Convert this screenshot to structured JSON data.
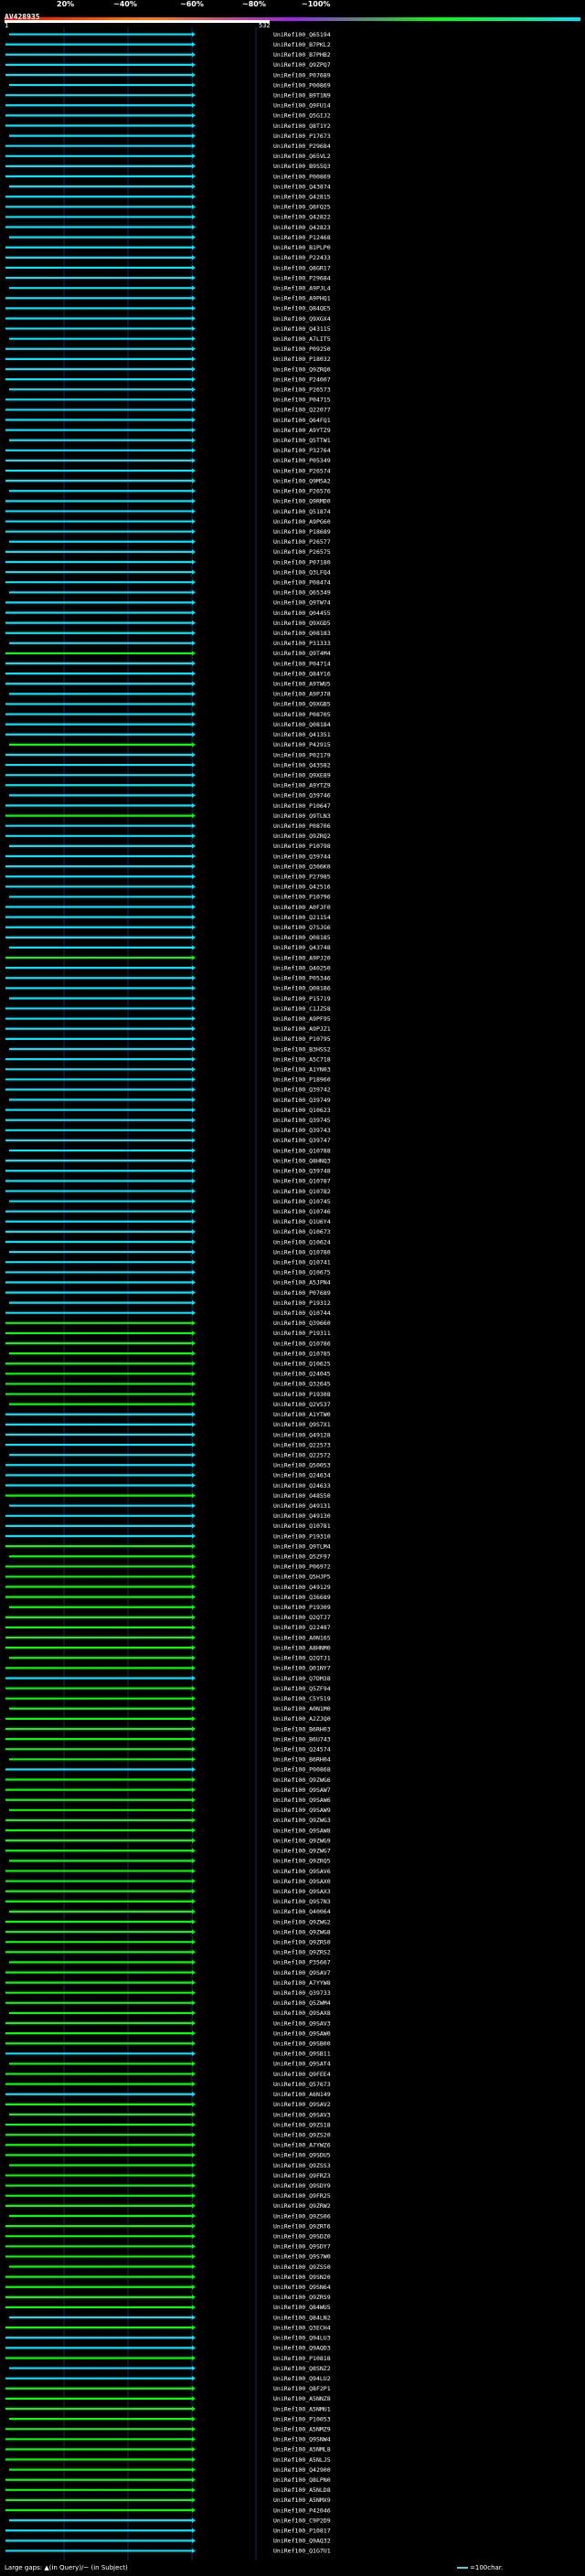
{
  "legend": {
    "labels": [
      "20%",
      "~40%",
      "~60%",
      "~80%",
      "~100%"
    ],
    "colors": [
      "#ff0000",
      "#ff8000",
      "#a020f0",
      "#00ff00",
      "#00e5ff"
    ]
  },
  "query": {
    "id": "AV428935",
    "start_label": "1",
    "end_label": "532"
  },
  "footer": {
    "text": "Large gaps: ▲(in Query)/~ (in Subject)",
    "scale_text": "=100char."
  },
  "hits": [
    {
      "id": "UniRef100_Q65194",
      "c": "b"
    },
    {
      "id": "UniRef100_B7PKL2",
      "c": "b"
    },
    {
      "id": "UniRef100_B7PHB2",
      "c": "b"
    },
    {
      "id": "UniRef100_Q9ZPQ7",
      "c": "b"
    },
    {
      "id": "UniRef100_P07689",
      "c": "b"
    },
    {
      "id": "UniRef100_P00869",
      "c": "b"
    },
    {
      "id": "UniRef100_B9T1N9",
      "c": "b"
    },
    {
      "id": "UniRef100_Q9FU14",
      "c": "b"
    },
    {
      "id": "UniRef100_Q5GIJ2",
      "c": "b"
    },
    {
      "id": "UniRef100_Q8T1Y2",
      "c": "b"
    },
    {
      "id": "UniRef100_P17673",
      "c": "b"
    },
    {
      "id": "UniRef100_P29684",
      "c": "b"
    },
    {
      "id": "UniRef100_Q65VL2",
      "c": "b"
    },
    {
      "id": "UniRef100_B9S5Q3",
      "c": "b"
    },
    {
      "id": "UniRef100_P00869",
      "c": "b"
    },
    {
      "id": "UniRef100_Q43874",
      "c": "b"
    },
    {
      "id": "UniRef100_Q42815",
      "c": "b"
    },
    {
      "id": "UniRef100_Q8FQ25",
      "c": "b"
    },
    {
      "id": "UniRef100_Q42822",
      "c": "b"
    },
    {
      "id": "UniRef100_Q42823",
      "c": "b"
    },
    {
      "id": "UniRef100_P12468",
      "c": "b"
    },
    {
      "id": "UniRef100_B1PLP0",
      "c": "b"
    },
    {
      "id": "UniRef100_P22433",
      "c": "b"
    },
    {
      "id": "UniRef100_Q8GR17",
      "c": "b"
    },
    {
      "id": "UniRef100_P29684",
      "c": "b"
    },
    {
      "id": "UniRef100_A9PJL4",
      "c": "b"
    },
    {
      "id": "UniRef100_A9PHQ1",
      "c": "b"
    },
    {
      "id": "UniRef100_Q84QE5",
      "c": "b"
    },
    {
      "id": "UniRef100_Q9XGX4",
      "c": "b"
    },
    {
      "id": "UniRef100_Q43115",
      "c": "b"
    },
    {
      "id": "UniRef100_A7LIT5",
      "c": "b"
    },
    {
      "id": "UniRef100_P09250",
      "c": "b"
    },
    {
      "id": "UniRef100_P18032",
      "c": "b"
    },
    {
      "id": "UniRef100_Q9ZRQ0",
      "c": "b"
    },
    {
      "id": "UniRef100_P24007",
      "c": "b"
    },
    {
      "id": "UniRef100_P26573",
      "c": "b"
    },
    {
      "id": "UniRef100_P04715",
      "c": "b"
    },
    {
      "id": "UniRef100_Q22077",
      "c": "b"
    },
    {
      "id": "UniRef100_Q64FQ1",
      "c": "b"
    },
    {
      "id": "UniRef100_A9YTZ9",
      "c": "b"
    },
    {
      "id": "UniRef100_Q5TTW1",
      "c": "b"
    },
    {
      "id": "UniRef100_P32764",
      "c": "b"
    },
    {
      "id": "UniRef100_P05349",
      "c": "b"
    },
    {
      "id": "UniRef100_P26574",
      "c": "b"
    },
    {
      "id": "UniRef100_Q9M5A2",
      "c": "b"
    },
    {
      "id": "UniRef100_P26576",
      "c": "b"
    },
    {
      "id": "UniRef100_Q9RMD0",
      "c": "b"
    },
    {
      "id": "UniRef100_Q51874",
      "c": "b"
    },
    {
      "id": "UniRef100_A9PG60",
      "c": "b"
    },
    {
      "id": "UniRef100_P18689",
      "c": "b"
    },
    {
      "id": "UniRef100_P26577",
      "c": "b"
    },
    {
      "id": "UniRef100_P26575",
      "c": "b"
    },
    {
      "id": "UniRef100_P07180",
      "c": "b"
    },
    {
      "id": "UniRef100_Q3LFQ4",
      "c": "b"
    },
    {
      "id": "UniRef100_P08474",
      "c": "b"
    },
    {
      "id": "UniRef100_Q65349",
      "c": "b"
    },
    {
      "id": "UniRef100_Q9TW74",
      "c": "b"
    },
    {
      "id": "UniRef100_Q04455",
      "c": "b"
    },
    {
      "id": "UniRef100_Q9XGD5",
      "c": "b"
    },
    {
      "id": "UniRef100_Q08183",
      "c": "b"
    },
    {
      "id": "UniRef100_P31333",
      "c": "b"
    },
    {
      "id": "UniRef100_Q9T4M4",
      "c": "g"
    },
    {
      "id": "UniRef100_P04714",
      "c": "b"
    },
    {
      "id": "UniRef100_Q84Y16",
      "c": "b"
    },
    {
      "id": "UniRef100_A9TWU5",
      "c": "b"
    },
    {
      "id": "UniRef100_A9PJ78",
      "c": "b"
    },
    {
      "id": "UniRef100_Q9XGB5",
      "c": "b"
    },
    {
      "id": "UniRef100_P08705",
      "c": "b"
    },
    {
      "id": "UniRef100_Q08184",
      "c": "b"
    },
    {
      "id": "UniRef100_Q41351",
      "c": "b"
    },
    {
      "id": "UniRef100_P42915",
      "c": "g"
    },
    {
      "id": "UniRef100_P02179",
      "c": "b"
    },
    {
      "id": "UniRef100_Q43582",
      "c": "b"
    },
    {
      "id": "UniRef100_Q9XE89",
      "c": "b"
    },
    {
      "id": "UniRef100_A9YTZ9",
      "c": "b"
    },
    {
      "id": "UniRef100_Q39746",
      "c": "b"
    },
    {
      "id": "UniRef100_P10647",
      "c": "b"
    },
    {
      "id": "UniRef100_Q9TLN3",
      "c": "g"
    },
    {
      "id": "UniRef100_P08706",
      "c": "b"
    },
    {
      "id": "UniRef100_Q9ZRQ2",
      "c": "b"
    },
    {
      "id": "UniRef100_P10798",
      "c": "b"
    },
    {
      "id": "UniRef100_Q39744",
      "c": "b"
    },
    {
      "id": "UniRef100_Q306K0",
      "c": "b"
    },
    {
      "id": "UniRef100_P27985",
      "c": "b"
    },
    {
      "id": "UniRef100_Q42516",
      "c": "b"
    },
    {
      "id": "UniRef100_P10796",
      "c": "b"
    },
    {
      "id": "UniRef100_A0FJF0",
      "c": "b"
    },
    {
      "id": "UniRef100_Q21154",
      "c": "b"
    },
    {
      "id": "UniRef100_Q7SJG6",
      "c": "b"
    },
    {
      "id": "UniRef100_Q08185",
      "c": "b"
    },
    {
      "id": "UniRef100_Q43748",
      "c": "b"
    },
    {
      "id": "UniRef100_A9PJ20",
      "c": "g"
    },
    {
      "id": "UniRef100_Q40250",
      "c": "b"
    },
    {
      "id": "UniRef100_P05346",
      "c": "b"
    },
    {
      "id": "UniRef100_Q08186",
      "c": "b"
    },
    {
      "id": "UniRef100_P15719",
      "c": "b"
    },
    {
      "id": "UniRef100_C1JZ58",
      "c": "b"
    },
    {
      "id": "UniRef100_A9PF95",
      "c": "b"
    },
    {
      "id": "UniRef100_A9PJZ1",
      "c": "b"
    },
    {
      "id": "UniRef100_P10795",
      "c": "b"
    },
    {
      "id": "UniRef100_B3HSS2",
      "c": "b"
    },
    {
      "id": "UniRef100_A5C718",
      "c": "b"
    },
    {
      "id": "UniRef100_A1YN03",
      "c": "b"
    },
    {
      "id": "UniRef100_P18960",
      "c": "b"
    },
    {
      "id": "UniRef100_Q39742",
      "c": "b"
    },
    {
      "id": "UniRef100_Q39749",
      "c": "b"
    },
    {
      "id": "UniRef100_Q10623",
      "c": "b"
    },
    {
      "id": "UniRef100_Q39745",
      "c": "b"
    },
    {
      "id": "UniRef100_Q39743",
      "c": "b"
    },
    {
      "id": "UniRef100_Q39747",
      "c": "b"
    },
    {
      "id": "UniRef100_Q10788",
      "c": "b"
    },
    {
      "id": "UniRef100_Q8HNQ3",
      "c": "b"
    },
    {
      "id": "UniRef100_Q39748",
      "c": "b"
    },
    {
      "id": "UniRef100_Q10787",
      "c": "b"
    },
    {
      "id": "UniRef100_Q10782",
      "c": "b"
    },
    {
      "id": "UniRef100_Q10745",
      "c": "b"
    },
    {
      "id": "UniRef100_Q10746",
      "c": "b"
    },
    {
      "id": "UniRef100_Q1U6Y4",
      "c": "b"
    },
    {
      "id": "UniRef100_Q10673",
      "c": "b"
    },
    {
      "id": "UniRef100_Q10624",
      "c": "b"
    },
    {
      "id": "UniRef100_Q10780",
      "c": "b"
    },
    {
      "id": "UniRef100_Q10741",
      "c": "b"
    },
    {
      "id": "UniRef100_Q10675",
      "c": "b"
    },
    {
      "id": "UniRef100_A5JPN4",
      "c": "b"
    },
    {
      "id": "UniRef100_P07689",
      "c": "b"
    },
    {
      "id": "UniRef100_P19312",
      "c": "b"
    },
    {
      "id": "UniRef100_Q10744",
      "c": "b"
    },
    {
      "id": "UniRef100_Q39660",
      "c": "g"
    },
    {
      "id": "UniRef100_P19311",
      "c": "g"
    },
    {
      "id": "UniRef100_Q10786",
      "c": "g"
    },
    {
      "id": "UniRef100_Q10785",
      "c": "g"
    },
    {
      "id": "UniRef100_Q10625",
      "c": "g"
    },
    {
      "id": "UniRef100_Q24045",
      "c": "g"
    },
    {
      "id": "UniRef100_Q32645",
      "c": "g"
    },
    {
      "id": "UniRef100_P19308",
      "c": "g"
    },
    {
      "id": "UniRef100_Q2V537",
      "c": "g"
    },
    {
      "id": "UniRef100_A1YTW0",
      "c": "b"
    },
    {
      "id": "UniRef100_Q9S7X1",
      "c": "b"
    },
    {
      "id": "UniRef100_Q49128",
      "c": "b"
    },
    {
      "id": "UniRef100_Q22573",
      "c": "b"
    },
    {
      "id": "UniRef100_Q22572",
      "c": "b"
    },
    {
      "id": "UniRef100_Q50053",
      "c": "b"
    },
    {
      "id": "UniRef100_Q24634",
      "c": "b"
    },
    {
      "id": "UniRef100_Q24633",
      "c": "b"
    },
    {
      "id": "UniRef100_O48550",
      "c": "g"
    },
    {
      "id": "UniRef100_Q49131",
      "c": "b"
    },
    {
      "id": "UniRef100_Q49130",
      "c": "b"
    },
    {
      "id": "UniRef100_Q10781",
      "c": "b"
    },
    {
      "id": "UniRef100_P19310",
      "c": "b"
    },
    {
      "id": "UniRef100_Q9TLM4",
      "c": "g"
    },
    {
      "id": "UniRef100_Q5ZF97",
      "c": "g"
    },
    {
      "id": "UniRef100_P06972",
      "c": "g"
    },
    {
      "id": "UniRef100_Q5HJP5",
      "c": "g"
    },
    {
      "id": "UniRef100_Q49129",
      "c": "g"
    },
    {
      "id": "UniRef100_Q36689",
      "c": "g"
    },
    {
      "id": "UniRef100_P19309",
      "c": "g"
    },
    {
      "id": "UniRef100_Q2QTJ7",
      "c": "g"
    },
    {
      "id": "UniRef100_Q22487",
      "c": "g"
    },
    {
      "id": "UniRef100_A0N165",
      "c": "g"
    },
    {
      "id": "UniRef100_A8HNM0",
      "c": "g"
    },
    {
      "id": "UniRef100_Q2QTJ1",
      "c": "g"
    },
    {
      "id": "UniRef100_Q01NY7",
      "c": "g"
    },
    {
      "id": "UniRef100_Q7DM38",
      "c": "b"
    },
    {
      "id": "UniRef100_Q5ZF94",
      "c": "g"
    },
    {
      "id": "UniRef100_C5Y519",
      "c": "g"
    },
    {
      "id": "UniRef100_A0N1M0",
      "c": "g"
    },
    {
      "id": "UniRef100_A2ZJQ0",
      "c": "g"
    },
    {
      "id": "UniRef100_B6RH03",
      "c": "g"
    },
    {
      "id": "UniRef100_B6U743",
      "c": "g"
    },
    {
      "id": "UniRef100_Q24574",
      "c": "g"
    },
    {
      "id": "UniRef100_B6RH04",
      "c": "g"
    },
    {
      "id": "UniRef100_P00868",
      "c": "b"
    },
    {
      "id": "UniRef100_Q9ZWG6",
      "c": "g"
    },
    {
      "id": "UniRef100_Q9SAW7",
      "c": "g"
    },
    {
      "id": "UniRef100_Q9SAW6",
      "c": "g"
    },
    {
      "id": "UniRef100_Q9SAW9",
      "c": "g"
    },
    {
      "id": "UniRef100_Q9ZWG3",
      "c": "g"
    },
    {
      "id": "UniRef100_Q9SAW8",
      "c": "g"
    },
    {
      "id": "UniRef100_Q9ZWG9",
      "c": "g"
    },
    {
      "id": "UniRef100_Q9ZWG7",
      "c": "g"
    },
    {
      "id": "UniRef100_Q9ZRQ5",
      "c": "g"
    },
    {
      "id": "UniRef100_Q9SAV6",
      "c": "g"
    },
    {
      "id": "UniRef100_Q9SAX0",
      "c": "g"
    },
    {
      "id": "UniRef100_Q9SAX3",
      "c": "g"
    },
    {
      "id": "UniRef100_Q9S7N3",
      "c": "g"
    },
    {
      "id": "UniRef100_Q40064",
      "c": "g"
    },
    {
      "id": "UniRef100_Q9ZWG2",
      "c": "g"
    },
    {
      "id": "UniRef100_Q9ZWG8",
      "c": "g"
    },
    {
      "id": "UniRef100_Q9ZRS0",
      "c": "g"
    },
    {
      "id": "UniRef100_Q9ZRS2",
      "c": "g"
    },
    {
      "id": "UniRef100_P35667",
      "c": "g"
    },
    {
      "id": "UniRef100_Q9SAV7",
      "c": "g"
    },
    {
      "id": "UniRef100_A7YYW8",
      "c": "g"
    },
    {
      "id": "UniRef100_Q39733",
      "c": "g"
    },
    {
      "id": "UniRef100_Q5ZWM4",
      "c": "g"
    },
    {
      "id": "UniRef100_Q9SAX8",
      "c": "g"
    },
    {
      "id": "UniRef100_Q9SAV3",
      "c": "g"
    },
    {
      "id": "UniRef100_Q9SAW0",
      "c": "g"
    },
    {
      "id": "UniRef100_Q9SB00",
      "c": "g"
    },
    {
      "id": "UniRef100_Q9SB11",
      "c": "b"
    },
    {
      "id": "UniRef100_Q9SAT4",
      "c": "g"
    },
    {
      "id": "UniRef100_Q9FEE4",
      "c": "g"
    },
    {
      "id": "UniRef100_Q57673",
      "c": "g"
    },
    {
      "id": "UniRef100_A6N149",
      "c": "b"
    },
    {
      "id": "UniRef100_Q9SAV2",
      "c": "g"
    },
    {
      "id": "UniRef100_Q9SAV3",
      "c": "g"
    },
    {
      "id": "UniRef100_Q9ZS18",
      "c": "g"
    },
    {
      "id": "UniRef100_Q9ZS20",
      "c": "g"
    },
    {
      "id": "UniRef100_A7YWZ6",
      "c": "g"
    },
    {
      "id": "UniRef100_Q9SDU5",
      "c": "g"
    },
    {
      "id": "UniRef100_Q9ZSS3",
      "c": "g"
    },
    {
      "id": "UniRef100_Q9FRZ3",
      "c": "g"
    },
    {
      "id": "UniRef100_Q9SDY9",
      "c": "g"
    },
    {
      "id": "UniRef100_Q9FR25",
      "c": "g"
    },
    {
      "id": "UniRef100_Q9ZRW2",
      "c": "g"
    },
    {
      "id": "UniRef100_Q9ZS06",
      "c": "g"
    },
    {
      "id": "UniRef100_Q9ZRT6",
      "c": "g"
    },
    {
      "id": "UniRef100_Q9SDZ0",
      "c": "g"
    },
    {
      "id": "UniRef100_Q9SDY7",
      "c": "g"
    },
    {
      "id": "UniRef100_Q9S7W0",
      "c": "g"
    },
    {
      "id": "UniRef100_Q9ZS50",
      "c": "g"
    },
    {
      "id": "UniRef100_Q9SN20",
      "c": "g"
    },
    {
      "id": "UniRef100_Q9SN64",
      "c": "g"
    },
    {
      "id": "UniRef100_Q9ZRS9",
      "c": "g"
    },
    {
      "id": "UniRef100_Q84WU5",
      "c": "g"
    },
    {
      "id": "UniRef100_Q84LN2",
      "c": "b"
    },
    {
      "id": "UniRef100_Q3ECH4",
      "c": "g"
    },
    {
      "id": "UniRef100_Q94LU3",
      "c": "b"
    },
    {
      "id": "UniRef100_Q9AQD3",
      "c": "b"
    },
    {
      "id": "UniRef100_P10818",
      "c": "g"
    },
    {
      "id": "UniRef100_Q8SNZ2",
      "c": "b"
    },
    {
      "id": "UniRef100_Q94LU2",
      "c": "b"
    },
    {
      "id": "UniRef100_Q8F2P1",
      "c": "g"
    },
    {
      "id": "UniRef100_A5NNZ8",
      "c": "g"
    },
    {
      "id": "UniRef100_A5NMU1",
      "c": "g"
    },
    {
      "id": "UniRef100_P10053",
      "c": "g"
    },
    {
      "id": "UniRef100_A5NMZ9",
      "c": "g"
    },
    {
      "id": "UniRef100_Q9SNW4",
      "c": "g"
    },
    {
      "id": "UniRef100_A5NML8",
      "c": "g"
    },
    {
      "id": "UniRef100_A5NLJ5",
      "c": "g"
    },
    {
      "id": "UniRef100_Q42900",
      "c": "g"
    },
    {
      "id": "UniRef100_Q8LPN0",
      "c": "g"
    },
    {
      "id": "UniRef100_A5NLD8",
      "c": "g"
    },
    {
      "id": "UniRef100_A5NMX9",
      "c": "g"
    },
    {
      "id": "UniRef100_P42046",
      "c": "g"
    },
    {
      "id": "UniRef100_C9P2D9",
      "c": "b"
    },
    {
      "id": "UniRef100_P10817",
      "c": "b"
    },
    {
      "id": "UniRef100_Q9AQ32",
      "c": "b"
    },
    {
      "id": "UniRef100_Q1G7U1",
      "c": "b"
    }
  ]
}
